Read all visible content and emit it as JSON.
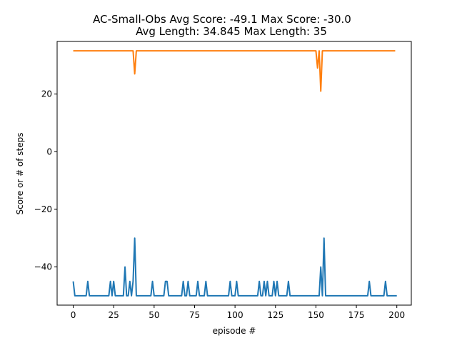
{
  "chart_data": {
    "type": "line",
    "title_line1": "AC-Small-Obs Avg Score: -49.1 Max Score: -30.0",
    "title_line2": "Avg Length: 34.845 Max Length: 35",
    "xlabel": "episode #",
    "ylabel": "Score or # of steps",
    "xlim": [
      -9.95,
      208.95
    ],
    "ylim": [
      -53.25,
      38.25
    ],
    "x_ticks": [
      0,
      25,
      50,
      75,
      100,
      125,
      150,
      175,
      200
    ],
    "y_ticks": [
      -40,
      -20,
      0,
      20
    ],
    "x_tick_labels": [
      "0",
      "25",
      "50",
      "75",
      "100",
      "125",
      "150",
      "175",
      "200"
    ],
    "y_tick_labels": [
      "−40",
      "−20",
      "0",
      "20"
    ],
    "grid": false,
    "series": [
      {
        "color": "#1f77b4",
        "values": [
          -45,
          -50,
          -50,
          -50,
          -50,
          -50,
          -50,
          -50,
          -50,
          -45,
          -50,
          -50,
          -50,
          -50,
          -50,
          -50,
          -50,
          -50,
          -50,
          -50,
          -50,
          -50,
          -50,
          -45,
          -50,
          -45,
          -50,
          -50,
          -50,
          -50,
          -50,
          -50,
          -40,
          -50,
          -50,
          -45,
          -50,
          -45,
          -30,
          -50,
          -50,
          -50,
          -50,
          -50,
          -50,
          -50,
          -50,
          -50,
          -50,
          -45,
          -50,
          -50,
          -50,
          -50,
          -50,
          -50,
          -50,
          -45,
          -45,
          -50,
          -50,
          -50,
          -50,
          -50,
          -50,
          -50,
          -50,
          -50,
          -45,
          -50,
          -50,
          -45,
          -50,
          -50,
          -50,
          -50,
          -50,
          -45,
          -50,
          -50,
          -50,
          -50,
          -45,
          -50,
          -50,
          -50,
          -50,
          -50,
          -50,
          -50,
          -50,
          -50,
          -50,
          -50,
          -50,
          -50,
          -50,
          -45,
          -50,
          -50,
          -50,
          -45,
          -50,
          -50,
          -50,
          -50,
          -50,
          -50,
          -50,
          -50,
          -50,
          -50,
          -50,
          -50,
          -50,
          -45,
          -50,
          -50,
          -45,
          -50,
          -45,
          -50,
          -50,
          -50,
          -45,
          -50,
          -45,
          -50,
          -50,
          -50,
          -50,
          -50,
          -50,
          -45,
          -50,
          -50,
          -50,
          -50,
          -50,
          -50,
          -50,
          -50,
          -50,
          -50,
          -50,
          -50,
          -50,
          -50,
          -50,
          -50,
          -50,
          -50,
          -50,
          -40,
          -50,
          -30,
          -50,
          -50,
          -50,
          -50,
          -50,
          -50,
          -50,
          -50,
          -50,
          -50,
          -50,
          -50,
          -50,
          -50,
          -50,
          -50,
          -50,
          -50,
          -50,
          -50,
          -50,
          -50,
          -50,
          -50,
          -50,
          -50,
          -50,
          -45,
          -50,
          -50,
          -50,
          -50,
          -50,
          -50,
          -50,
          -50,
          -50,
          -45,
          -50,
          -50,
          -50,
          -50,
          -50,
          -50,
          -50
        ]
      },
      {
        "color": "#ff7f0e",
        "values": [
          35,
          35,
          35,
          35,
          35,
          35,
          35,
          35,
          35,
          35,
          35,
          35,
          35,
          35,
          35,
          35,
          35,
          35,
          35,
          35,
          35,
          35,
          35,
          35,
          35,
          35,
          35,
          35,
          35,
          35,
          35,
          35,
          35,
          35,
          35,
          35,
          35,
          35,
          27,
          35,
          35,
          35,
          35,
          35,
          35,
          35,
          35,
          35,
          35,
          35,
          35,
          35,
          35,
          35,
          35,
          35,
          35,
          35,
          35,
          35,
          35,
          35,
          35,
          35,
          35,
          35,
          35,
          35,
          35,
          35,
          35,
          35,
          35,
          35,
          35,
          35,
          35,
          35,
          35,
          35,
          35,
          35,
          35,
          35,
          35,
          35,
          35,
          35,
          35,
          35,
          35,
          35,
          35,
          35,
          35,
          35,
          35,
          35,
          35,
          35,
          35,
          35,
          35,
          35,
          35,
          35,
          35,
          35,
          35,
          35,
          35,
          35,
          35,
          35,
          35,
          35,
          35,
          35,
          35,
          35,
          35,
          35,
          35,
          35,
          35,
          35,
          35,
          35,
          35,
          35,
          35,
          35,
          35,
          35,
          35,
          35,
          35,
          35,
          35,
          35,
          35,
          35,
          35,
          35,
          35,
          35,
          35,
          35,
          35,
          35,
          35,
          29,
          35,
          21,
          35,
          35,
          35,
          35,
          35,
          35,
          35,
          35,
          35,
          35,
          35,
          35,
          35,
          35,
          35,
          35,
          35,
          35,
          35,
          35,
          35,
          35,
          35,
          35,
          35,
          35,
          35,
          35,
          35,
          35,
          35,
          35,
          35,
          35,
          35,
          35,
          35,
          35,
          35,
          35,
          35,
          35,
          35,
          35,
          35,
          35
        ]
      }
    ]
  }
}
